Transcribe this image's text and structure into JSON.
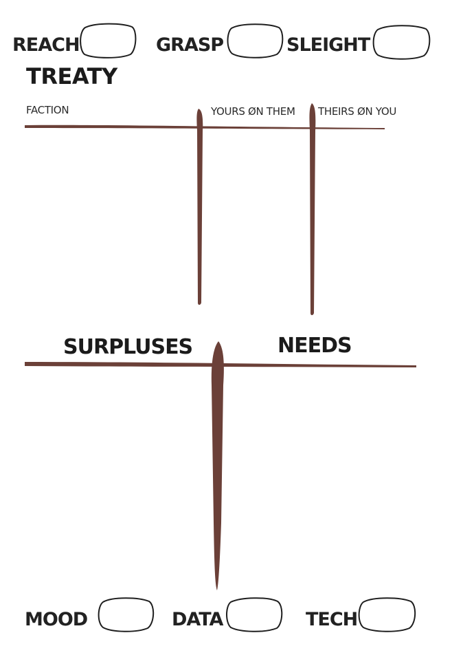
{
  "colors": {
    "ink": "#1e1e1e",
    "rule": "#6b4038"
  },
  "top_stats": {
    "reach": "REACH",
    "grasp": "GRASP",
    "sleight": "SLEIGHT"
  },
  "treaty": {
    "title": "TREATY",
    "columns": {
      "faction": "FACTION",
      "yours_on_them": "YOURS ØN THEM",
      "theirs_on_you": "THEIRS ØN YOU"
    }
  },
  "trade": {
    "surpluses": "SURPLUSES",
    "needs": "NEEDS"
  },
  "bottom_stats": {
    "mood": "MOOD",
    "data": "DATA",
    "tech": "TECH"
  }
}
